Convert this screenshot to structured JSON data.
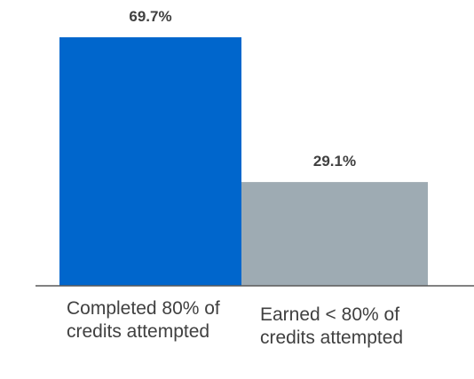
{
  "chart_data": {
    "type": "bar",
    "categories": [
      "Completed 80% of credits attempted",
      "Earned < 80% of credits attempted"
    ],
    "values": [
      69.7,
      29.1
    ],
    "value_labels": [
      "69.7%",
      "29.1%"
    ],
    "colors": [
      "#0066cc",
      "#9eabb3"
    ]
  }
}
